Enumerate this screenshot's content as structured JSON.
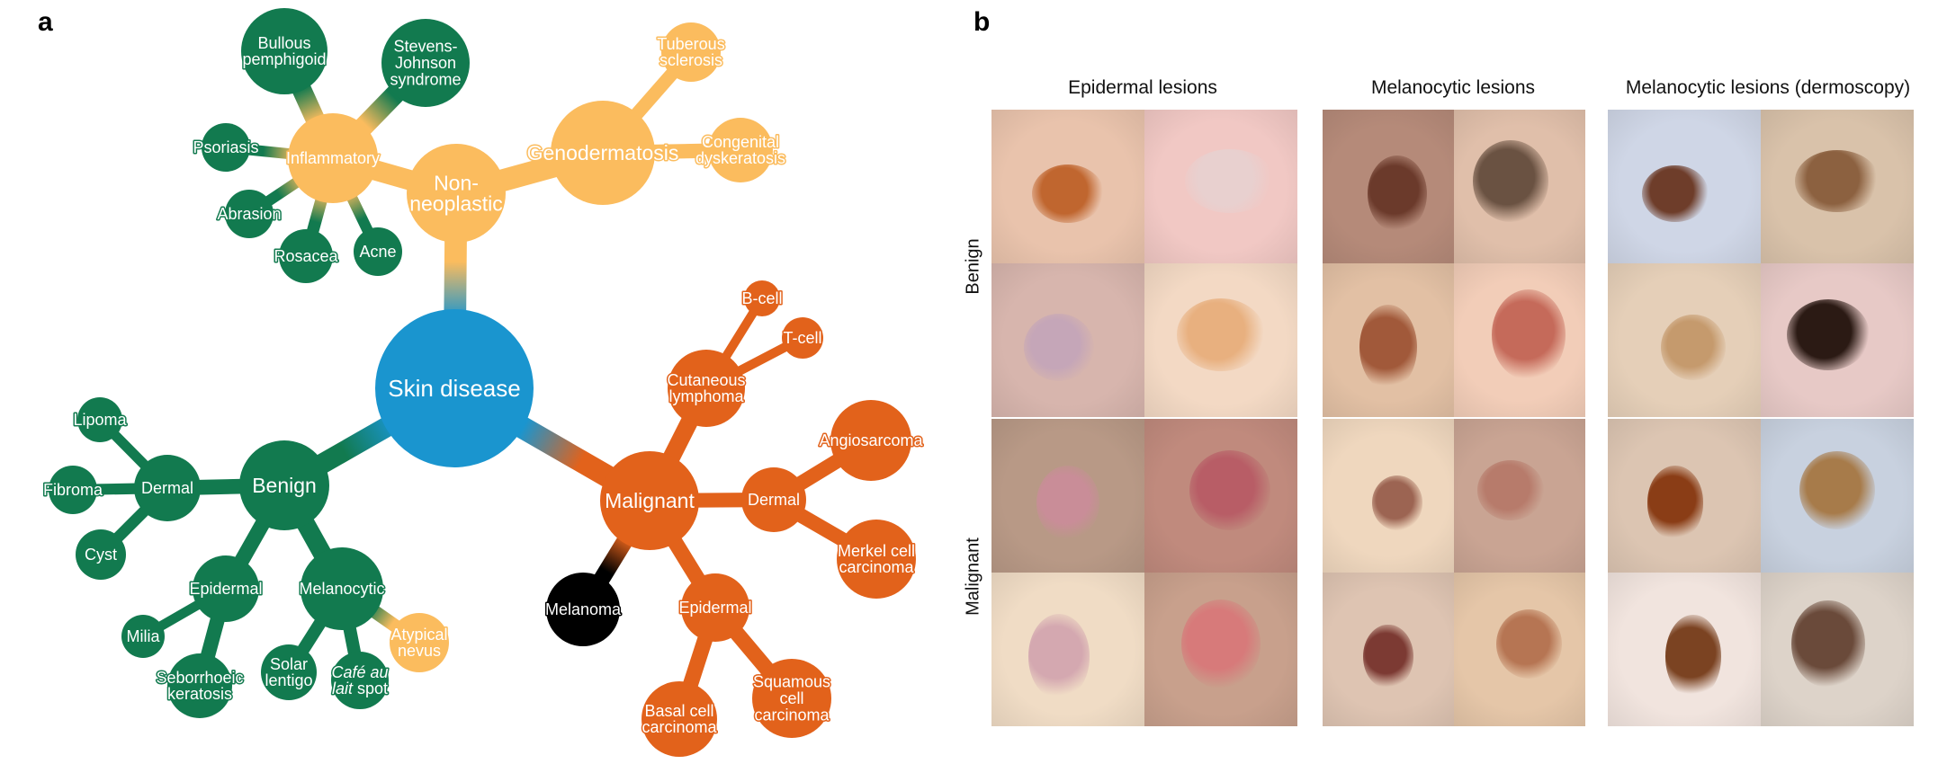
{
  "panels": {
    "a": "a",
    "b": "b"
  },
  "colors": {
    "root": "#1a95cf",
    "non_neoplastic": "#fbbc5e",
    "inflammatory_leaf": "#127a4f",
    "benign": "#127a4f",
    "malignant": "#e2621b",
    "melanoma": "#000000",
    "atypical": "#fbbc5e"
  },
  "tree": {
    "root": "Skin disease",
    "nodes": [
      {
        "id": "root",
        "label": "Skin disease",
        "color": "root",
        "size": "xl"
      },
      {
        "id": "nonneo",
        "label": "Non-\nneoplastic",
        "color": "non_neoplastic",
        "size": "l"
      },
      {
        "id": "inflam",
        "label": "Inflammatory",
        "color": "non_neoplastic",
        "size": "m"
      },
      {
        "id": "bullous",
        "label": "Bullous\npemphigoid",
        "color": "inflammatory_leaf",
        "size": "m"
      },
      {
        "id": "sjs",
        "label": "Stevens-\nJohnson\nsyndrome",
        "color": "inflammatory_leaf",
        "size": "m"
      },
      {
        "id": "psoriasis",
        "label": "Psoriasis",
        "color": "inflammatory_leaf",
        "size": "s"
      },
      {
        "id": "abrasion",
        "label": "Abrasion",
        "color": "inflammatory_leaf",
        "size": "s"
      },
      {
        "id": "rosacea",
        "label": "Rosacea",
        "color": "inflammatory_leaf",
        "size": "s"
      },
      {
        "id": "acne",
        "label": "Acne",
        "color": "inflammatory_leaf",
        "size": "s"
      },
      {
        "id": "geno",
        "label": "Genodermatosis",
        "color": "non_neoplastic",
        "size": "l"
      },
      {
        "id": "tuberous",
        "label": "Tuberous\nsclerosis",
        "color": "non_neoplastic",
        "size": "s"
      },
      {
        "id": "congenital",
        "label": "Congenital\ndyskeratosis",
        "color": "non_neoplastic",
        "size": "s"
      },
      {
        "id": "benign",
        "label": "Benign",
        "color": "benign",
        "size": "l"
      },
      {
        "id": "dermal_b",
        "label": "Dermal",
        "color": "benign",
        "size": "m"
      },
      {
        "id": "lipoma",
        "label": "Lipoma",
        "color": "benign",
        "size": "s"
      },
      {
        "id": "fibroma",
        "label": "Fibroma",
        "color": "benign",
        "size": "s"
      },
      {
        "id": "cyst",
        "label": "Cyst",
        "color": "benign",
        "size": "s"
      },
      {
        "id": "epidermal_b",
        "label": "Epidermal",
        "color": "benign",
        "size": "m"
      },
      {
        "id": "milia",
        "label": "Milia",
        "color": "benign",
        "size": "s"
      },
      {
        "id": "seborrhoeic",
        "label": "Seborrhoeic\nkeratosis",
        "color": "benign",
        "size": "m"
      },
      {
        "id": "melanocytic",
        "label": "Melanocytic",
        "color": "benign",
        "size": "m"
      },
      {
        "id": "solar",
        "label": "Solar\nlentigo",
        "color": "benign",
        "size": "s"
      },
      {
        "id": "cafe",
        "label": "Café au\nlait spot",
        "color": "benign",
        "size": "s"
      },
      {
        "id": "atypical",
        "label": "Atypical\nnevus",
        "color": "atypical",
        "size": "s"
      },
      {
        "id": "malignant",
        "label": "Malignant",
        "color": "malignant",
        "size": "l"
      },
      {
        "id": "cutaneous",
        "label": "Cutaneous\nlymphoma",
        "color": "malignant",
        "size": "m"
      },
      {
        "id": "bcell",
        "label": "B-cell",
        "color": "malignant",
        "size": "xs"
      },
      {
        "id": "tcell",
        "label": "T-cell",
        "color": "malignant",
        "size": "xs"
      },
      {
        "id": "dermal_m",
        "label": "Dermal",
        "color": "malignant",
        "size": "m"
      },
      {
        "id": "angio",
        "label": "Angiosarcoma",
        "color": "malignant",
        "size": "m"
      },
      {
        "id": "merkel",
        "label": "Merkel cell\ncarcinoma",
        "color": "malignant",
        "size": "m"
      },
      {
        "id": "epidermal_m",
        "label": "Epidermal",
        "color": "malignant",
        "size": "m"
      },
      {
        "id": "basal",
        "label": "Basal cell\ncarcinoma",
        "color": "malignant",
        "size": "m"
      },
      {
        "id": "squamous",
        "label": "Squamous\ncell\ncarcinoma",
        "color": "malignant",
        "size": "m"
      },
      {
        "id": "melanoma",
        "label": "Melanoma",
        "color": "melanoma",
        "size": "m"
      }
    ],
    "edges": [
      [
        "root",
        "nonneo"
      ],
      [
        "nonneo",
        "inflam"
      ],
      [
        "nonneo",
        "geno"
      ],
      [
        "inflam",
        "bullous"
      ],
      [
        "inflam",
        "sjs"
      ],
      [
        "inflam",
        "psoriasis"
      ],
      [
        "inflam",
        "abrasion"
      ],
      [
        "inflam",
        "rosacea"
      ],
      [
        "inflam",
        "acne"
      ],
      [
        "geno",
        "tuberous"
      ],
      [
        "geno",
        "congenital"
      ],
      [
        "root",
        "benign"
      ],
      [
        "benign",
        "dermal_b"
      ],
      [
        "dermal_b",
        "lipoma"
      ],
      [
        "dermal_b",
        "fibroma"
      ],
      [
        "dermal_b",
        "cyst"
      ],
      [
        "benign",
        "epidermal_b"
      ],
      [
        "epidermal_b",
        "milia"
      ],
      [
        "epidermal_b",
        "seborrhoeic"
      ],
      [
        "benign",
        "melanocytic"
      ],
      [
        "melanocytic",
        "solar"
      ],
      [
        "melanocytic",
        "cafe"
      ],
      [
        "melanocytic",
        "atypical"
      ],
      [
        "root",
        "malignant"
      ],
      [
        "malignant",
        "cutaneous"
      ],
      [
        "cutaneous",
        "bcell"
      ],
      [
        "cutaneous",
        "tcell"
      ],
      [
        "malignant",
        "dermal_m"
      ],
      [
        "dermal_m",
        "angio"
      ],
      [
        "dermal_m",
        "merkel"
      ],
      [
        "malignant",
        "epidermal_m"
      ],
      [
        "epidermal_m",
        "basal"
      ],
      [
        "epidermal_m",
        "squamous"
      ],
      [
        "malignant",
        "melanoma"
      ]
    ]
  },
  "gallery": {
    "columns": [
      "Epidermal lesions",
      "Melanocytic lesions",
      "Melanocytic lesions (dermoscopy)"
    ],
    "rows": [
      "Benign",
      "Malignant"
    ]
  }
}
